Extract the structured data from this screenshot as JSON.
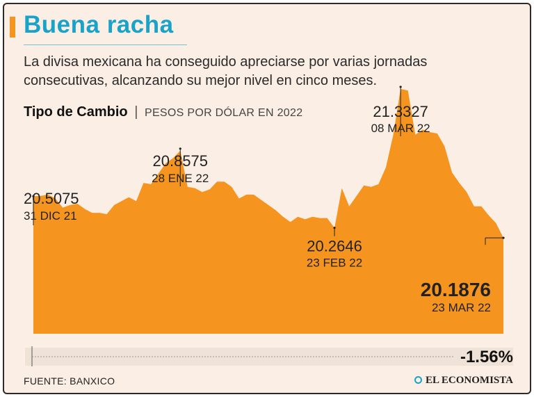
{
  "header": {
    "title": "Buena racha",
    "subtitle": "La divisa mexicana ha conseguido apreciarse por varias jornadas consecutivas, alcanzando su mejor nivel en cinco meses."
  },
  "chart_head": {
    "title": "Tipo de Cambio",
    "separator": "|",
    "subtitle": "PESOS POR DÓLAR EN 2022"
  },
  "colors": {
    "area": "#f5951f",
    "title": "#1aa3c9",
    "background": "#fbeee4"
  },
  "chart_data": {
    "type": "area",
    "title": "Tipo de Cambio",
    "ylabel": "PESOS POR DÓLAR EN 2022",
    "ylim": [
      19.45,
      21.45
    ],
    "grid": false,
    "series": [
      {
        "values": [
          20.5075,
          20.51,
          20.52,
          20.49,
          20.42,
          20.44,
          20.45,
          20.41,
          20.38,
          20.38,
          20.37,
          20.44,
          20.47,
          20.5,
          20.47,
          20.61,
          20.6,
          20.68,
          20.76,
          20.8,
          20.8575,
          20.58,
          20.57,
          20.54,
          20.56,
          20.62,
          20.62,
          20.58,
          20.49,
          20.52,
          20.52,
          20.48,
          20.44,
          20.4,
          20.35,
          20.31,
          20.35,
          20.33,
          20.35,
          20.34,
          20.34,
          20.2646,
          20.57,
          20.43,
          20.51,
          20.59,
          20.58,
          20.6,
          20.73,
          20.98,
          21.3327,
          21.32,
          20.98,
          21.02,
          21.0,
          20.99,
          20.89,
          20.69,
          20.61,
          20.54,
          20.43,
          20.43,
          20.36,
          20.3,
          20.1876
        ]
      }
    ],
    "annotations": [
      {
        "value": "20.5075",
        "date": "31 DIC 21"
      },
      {
        "value": "20.8575",
        "date": "28 ENE 22"
      },
      {
        "value": "21.3327",
        "date": "08 MAR 22"
      },
      {
        "value": "20.2646",
        "date": "23 FEB 22"
      },
      {
        "value": "20.1876",
        "date": "23 MAR 22"
      }
    ],
    "change_label": "-1.56%"
  },
  "footer": {
    "source": "FUENTE: BANXICO",
    "brand": "EL ECONOMISTA"
  }
}
